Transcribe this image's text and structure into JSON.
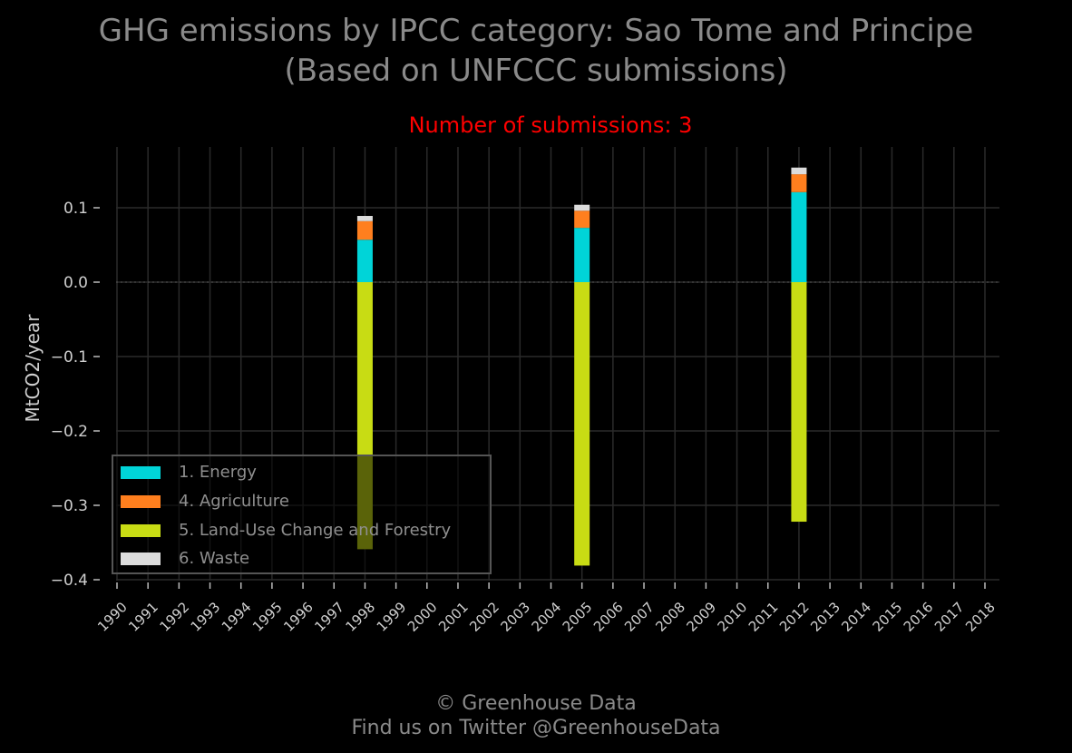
{
  "title_lines": [
    "GHG emissions by IPCC category: Sao Tome and Principe",
    "(Based on UNFCCC submissions)"
  ],
  "subtitle": "Number of submissions: 3",
  "footer": {
    "line1": "© Greenhouse Data",
    "line2": "Find us on Twitter @GreenhouseData"
  },
  "chart_data": {
    "type": "bar",
    "stacked": true,
    "ylabel": "MtCO2/year",
    "xlabel": "",
    "ylim": [
      -0.4,
      0.18
    ],
    "yticks": [
      0.1,
      0.0,
      -0.1,
      -0.2,
      -0.3,
      -0.4
    ],
    "ytick_labels": [
      "0.1",
      "0.0",
      "−0.1",
      "−0.2",
      "−0.3",
      "−0.4"
    ],
    "x_categories": [
      "1990",
      "1991",
      "1992",
      "1993",
      "1994",
      "1995",
      "1996",
      "1997",
      "1998",
      "1999",
      "2000",
      "2001",
      "2002",
      "2003",
      "2004",
      "2005",
      "2006",
      "2007",
      "2008",
      "2009",
      "2010",
      "2011",
      "2012",
      "2013",
      "2014",
      "2015",
      "2016",
      "2017",
      "2018"
    ],
    "grid": true,
    "legend_position": "lower-left",
    "bar_years": [
      "1998",
      "2005",
      "2012"
    ],
    "series": [
      {
        "name": "1. Energy",
        "color": "#00d4d8",
        "values": [
          0.057,
          0.073,
          0.121
        ]
      },
      {
        "name": "4. Agriculture",
        "color": "#ff7f1e",
        "values": [
          0.025,
          0.023,
          0.024
        ]
      },
      {
        "name": "5. Land-Use Change and Forestry",
        "color": "#c8dc14",
        "values": [
          -0.359,
          -0.381,
          -0.322
        ]
      },
      {
        "name": "6. Waste",
        "color": "#dcdcdc",
        "values": [
          0.007,
          0.008,
          0.009
        ]
      }
    ]
  }
}
